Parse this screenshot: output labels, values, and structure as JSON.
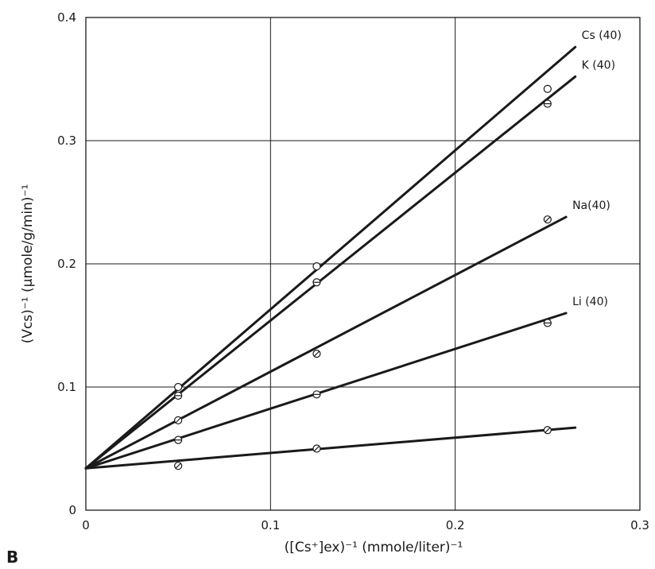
{
  "panel_label": "B",
  "colors": {
    "ink": "#1a1a1a",
    "grid": "#1a1a1a",
    "background": "#ffffff"
  },
  "chart_data": {
    "type": "line",
    "title": "",
    "xlabel": "([Cs⁺]ex)⁻¹ (mmole/liter)⁻¹",
    "ylabel": "(Vcs)⁻¹ (μmole/g/min)⁻¹",
    "xlim": [
      0,
      0.3
    ],
    "ylim": [
      0,
      0.4
    ],
    "grid": true,
    "x_ticks": [
      {
        "value": 0,
        "label": "0"
      },
      {
        "value": 0.1,
        "label": "0.1"
      },
      {
        "value": 0.2,
        "label": "0.2"
      },
      {
        "value": 0.3,
        "label": "0.3"
      }
    ],
    "y_ticks": [
      {
        "value": 0,
        "label": "0"
      },
      {
        "value": 0.1,
        "label": "0.1"
      },
      {
        "value": 0.2,
        "label": "0.2"
      },
      {
        "value": 0.3,
        "label": "0.3"
      },
      {
        "value": 0.4,
        "label": "0.4"
      }
    ],
    "series": [
      {
        "name": "Cs (40)",
        "marker": "open-circle",
        "points": [
          {
            "x": 0.05,
            "y": 0.1
          },
          {
            "x": 0.125,
            "y": 0.198
          },
          {
            "x": 0.25,
            "y": 0.342
          }
        ],
        "line": [
          {
            "x": 0,
            "y": 0.034
          },
          {
            "x": 0.265,
            "y": 0.376
          }
        ]
      },
      {
        "name": "K (40)",
        "marker": "circle-h-bar",
        "points": [
          {
            "x": 0.05,
            "y": 0.093
          },
          {
            "x": 0.125,
            "y": 0.185
          },
          {
            "x": 0.25,
            "y": 0.33
          }
        ],
        "line": [
          {
            "x": 0,
            "y": 0.034
          },
          {
            "x": 0.265,
            "y": 0.352
          }
        ]
      },
      {
        "name": "Na(40)",
        "marker": "circle-slash",
        "points": [
          {
            "x": 0.05,
            "y": 0.073
          },
          {
            "x": 0.125,
            "y": 0.127
          },
          {
            "x": 0.25,
            "y": 0.236
          }
        ],
        "line": [
          {
            "x": 0,
            "y": 0.034
          },
          {
            "x": 0.26,
            "y": 0.238
          }
        ]
      },
      {
        "name": "Li (40)",
        "marker": "circle-h-bar",
        "points": [
          {
            "x": 0.05,
            "y": 0.057
          },
          {
            "x": 0.125,
            "y": 0.094
          },
          {
            "x": 0.25,
            "y": 0.152
          }
        ],
        "line": [
          {
            "x": 0,
            "y": 0.034
          },
          {
            "x": 0.26,
            "y": 0.16
          }
        ]
      },
      {
        "name": "",
        "marker": "circle-slash",
        "points": [
          {
            "x": 0.05,
            "y": 0.036
          },
          {
            "x": 0.125,
            "y": 0.05
          },
          {
            "x": 0.25,
            "y": 0.065
          }
        ],
        "line": [
          {
            "x": 0,
            "y": 0.034
          },
          {
            "x": 0.265,
            "y": 0.067
          }
        ]
      }
    ]
  }
}
